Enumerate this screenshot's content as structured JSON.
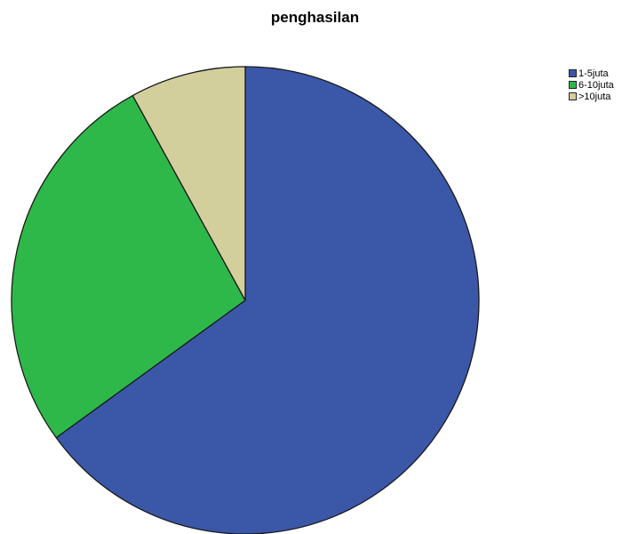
{
  "chart_data": {
    "type": "pie",
    "title": "penghasilan",
    "legend_position": "top-right",
    "series": [
      {
        "name": "1-5juta",
        "value": 65,
        "color": "#3b57a8"
      },
      {
        "name": "6-10juta",
        "value": 27,
        "color": "#2eb84a"
      },
      {
        "name": ">10juta",
        "value": 8,
        "color": "#d3cf9c"
      }
    ]
  }
}
